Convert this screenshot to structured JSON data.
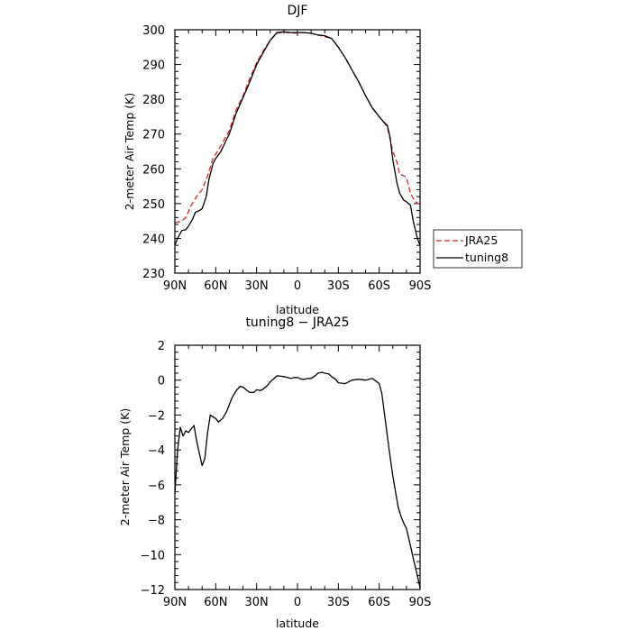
{
  "chart_data": [
    {
      "type": "line",
      "title": "DJF",
      "xlabel": "latitude",
      "ylabel": "2-meter Air Temp (K)",
      "x_unit_note": "latitude in degrees, positive = N, negative = S",
      "xlim": [
        90,
        -90
      ],
      "ylim": [
        230,
        300
      ],
      "xticks": [
        90,
        60,
        30,
        0,
        -30,
        -60,
        -90
      ],
      "xtick_labels": [
        "90N",
        "60N",
        "30N",
        "0",
        "30S",
        "60S",
        "90S"
      ],
      "yticks": [
        230,
        240,
        250,
        260,
        270,
        280,
        290,
        300
      ],
      "ytick_labels": [
        "230",
        "240",
        "250",
        "260",
        "270",
        "280",
        "290",
        "300"
      ],
      "legend_position": "right",
      "series": [
        {
          "name": "JRA25",
          "color": "#d62728",
          "dash": "dashed",
          "x": [
            90,
            85,
            82,
            78,
            75,
            70,
            66,
            62,
            58,
            55,
            50,
            45,
            40,
            35,
            30,
            25,
            20,
            15,
            10,
            5,
            0,
            -5,
            -10,
            -15,
            -20,
            -25,
            -30,
            -35,
            -40,
            -45,
            -50,
            -55,
            -60,
            -63,
            -66,
            -70,
            -73,
            -75,
            -78,
            -80,
            -83,
            -85,
            -88,
            -90
          ],
          "values": [
            244.5,
            245,
            246,
            249.5,
            251.5,
            254,
            258,
            263,
            265.5,
            267.5,
            271,
            277,
            281,
            286,
            290.5,
            294,
            297,
            299,
            299.3,
            299.1,
            299,
            299.2,
            299,
            298.5,
            298,
            297.5,
            295,
            292,
            288.5,
            285,
            281,
            277.5,
            275,
            273.5,
            272,
            265,
            262,
            258.5,
            258,
            257.5,
            253,
            251.5,
            250,
            250
          ]
        },
        {
          "name": "tuning8",
          "color": "#000000",
          "dash": "solid",
          "x": [
            90,
            88,
            85,
            82,
            80,
            77,
            75,
            72,
            70,
            67,
            65,
            62,
            60,
            57,
            55,
            52,
            50,
            45,
            40,
            35,
            30,
            25,
            20,
            15,
            10,
            5,
            0,
            -5,
            -10,
            -15,
            -20,
            -25,
            -30,
            -35,
            -40,
            -45,
            -50,
            -55,
            -60,
            -63,
            -66,
            -68,
            -70,
            -73,
            -75,
            -78,
            -80,
            -83,
            -85,
            -88,
            -90
          ],
          "values": [
            238,
            240,
            242.2,
            242.5,
            243.5,
            245.5,
            247.5,
            248,
            248.5,
            252,
            257,
            261.5,
            263,
            264.5,
            266,
            268.5,
            270,
            276,
            280.5,
            285,
            290,
            293.5,
            297,
            299.2,
            299.4,
            299.2,
            299.2,
            299.2,
            299,
            298.5,
            298.3,
            297.5,
            295,
            292,
            288.5,
            285,
            281,
            277.5,
            275,
            273.6,
            272.5,
            269,
            262.5,
            256,
            253,
            251,
            250.5,
            249.5,
            245,
            240,
            238
          ]
        }
      ]
    },
    {
      "type": "line",
      "title": "tuning8 − JRA25",
      "xlabel": "latitude",
      "ylabel": "2-meter Air Temp (K)",
      "x_unit_note": "latitude in degrees, positive = N, negative = S",
      "xlim": [
        90,
        -90
      ],
      "ylim": [
        -12,
        2
      ],
      "xticks": [
        90,
        60,
        30,
        0,
        -30,
        -60,
        -90
      ],
      "xtick_labels": [
        "90N",
        "60N",
        "30N",
        "0",
        "30S",
        "60S",
        "90S"
      ],
      "yticks": [
        -12,
        -10,
        -8,
        -6,
        -4,
        -2,
        0,
        2
      ],
      "ytick_labels": [
        "−12",
        "−10",
        "−8",
        "−6",
        "−4",
        "−2",
        "0",
        "2"
      ],
      "series": [
        {
          "color": "#000000",
          "dash": "solid",
          "x": [
            90,
            88,
            86,
            84,
            82,
            80,
            78,
            76,
            74,
            72,
            70,
            68,
            66,
            64,
            62,
            60,
            58,
            55,
            52,
            50,
            48,
            45,
            42,
            40,
            37,
            35,
            32,
            30,
            27,
            25,
            22,
            20,
            15,
            10,
            5,
            2,
            0,
            -3,
            -5,
            -8,
            -10,
            -13,
            -15,
            -18,
            -20,
            -23,
            -25,
            -28,
            -30,
            -35,
            -40,
            -45,
            -50,
            -55,
            -60,
            -62,
            -64,
            -66,
            -68,
            -70,
            -72,
            -74,
            -76,
            -78,
            -80,
            -83,
            -85,
            -88,
            -90
          ],
          "values": [
            -6.5,
            -4,
            -2.7,
            -3.2,
            -2.9,
            -3.0,
            -2.8,
            -2.6,
            -3.5,
            -4.2,
            -4.9,
            -4.5,
            -3.0,
            -2.0,
            -2.1,
            -2.2,
            -2.4,
            -2.2,
            -1.8,
            -1.4,
            -1.0,
            -0.6,
            -0.35,
            -0.4,
            -0.6,
            -0.7,
            -0.7,
            -0.55,
            -0.6,
            -0.5,
            -0.3,
            -0.1,
            0.25,
            0.2,
            0.1,
            0.15,
            0.15,
            0.05,
            0.05,
            0.1,
            0.1,
            0.25,
            0.4,
            0.45,
            0.4,
            0.35,
            0.2,
            0.05,
            -0.15,
            -0.2,
            0.0,
            0.05,
            0.0,
            0.1,
            -0.2,
            -0.8,
            -2.0,
            -3.2,
            -4.4,
            -5.5,
            -6.4,
            -7.3,
            -7.8,
            -8.2,
            -8.5,
            -9.5,
            -10.2,
            -11.2,
            -11.9
          ]
        }
      ]
    }
  ]
}
